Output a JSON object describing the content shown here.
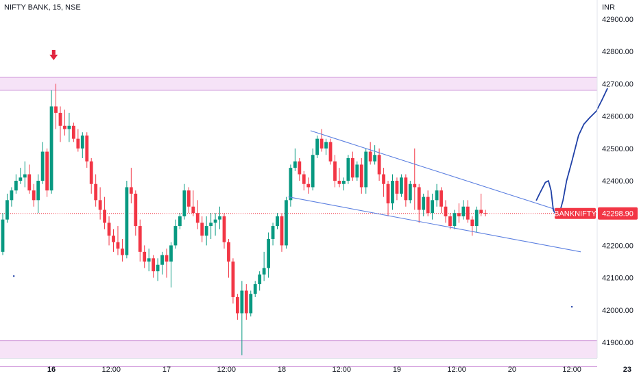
{
  "chart_data": {
    "type": "candlestick",
    "title": "NIFTY BANK, 15, NSE",
    "currency": "INR",
    "y_ticks": [
      41900,
      42000,
      42100,
      42200,
      42300,
      42400,
      42500,
      42600,
      42700,
      42800,
      42900
    ],
    "y_tick_labels": [
      "41900.00",
      "42000.00",
      "42100.00",
      "42200.00",
      "42300.00",
      "42400.00",
      "42500.00",
      "42600.00",
      "42700.00",
      "42800.00",
      "42900.00"
    ],
    "ylim": [
      41830,
      42940
    ],
    "x_tick_labels": [
      {
        "label": "16",
        "x": 11,
        "bold": true
      },
      {
        "label": "12:00",
        "x": 24.5,
        "bold": false
      },
      {
        "label": "17",
        "x": 37,
        "bold": false
      },
      {
        "label": "12:00",
        "x": 50.5,
        "bold": false
      },
      {
        "label": "18",
        "x": 63,
        "bold": false
      },
      {
        "label": "12:00",
        "x": 76.5,
        "bold": false
      },
      {
        "label": "19",
        "x": 89,
        "bold": false
      },
      {
        "label": "12:00",
        "x": 102.5,
        "bold": false
      },
      {
        "label": "20",
        "x": 115,
        "bold": false
      },
      {
        "label": "12:00",
        "x": 128.5,
        "bold": false
      },
      {
        "label": "23",
        "x": 141,
        "bold": true
      }
    ],
    "xlim": [
      0,
      145
    ],
    "last_price": {
      "symbol": "BANKNIFTY",
      "value": 42298.9,
      "label": "42298.90"
    },
    "zones": [
      {
        "from": 42680,
        "to": 42720
      },
      {
        "from": 41825,
        "to": 41905
      }
    ],
    "colors": {
      "up": "#089981",
      "down": "#f23645",
      "zone": "#f6e3f7",
      "zone_border": "#ce93d8",
      "trend": "#5b7fe0",
      "drawing": "#1e3fa6",
      "arrow": "#e1253f",
      "price_label": "#f23645"
    },
    "trend_lines": [
      {
        "from": [
          69.5,
          42555
        ],
        "to": [
          128.5,
          42295
        ]
      },
      {
        "from": [
          64.5,
          42350
        ],
        "to": [
          130.5,
          42180
        ]
      }
    ],
    "freehand_path": [
      [
        120.5,
        42340
      ],
      [
        121.2,
        42360
      ],
      [
        122.5,
        42395
      ],
      [
        123.2,
        42400
      ],
      [
        123.8,
        42370
      ],
      [
        124.3,
        42310
      ],
      [
        125,
        42290
      ],
      [
        125.8,
        42305
      ],
      [
        126.5,
        42340
      ],
      [
        127.3,
        42400
      ],
      [
        128.5,
        42460
      ],
      [
        130,
        42540
      ],
      [
        131.2,
        42575
      ],
      [
        132.5,
        42595
      ],
      [
        134,
        42615
      ],
      [
        135.3,
        42650
      ],
      [
        136.5,
        42685
      ]
    ],
    "arrow_marker": {
      "x": 11.5,
      "price": 42790
    },
    "scatter_markers": [
      [
        2.5,
        42105
      ],
      [
        128.5,
        42010
      ]
    ],
    "candles": [
      [
        0,
        42180,
        42300,
        42170,
        42280
      ],
      [
        1,
        42280,
        42360,
        42270,
        42340
      ],
      [
        2,
        42340,
        42380,
        42320,
        42370
      ],
      [
        3,
        42370,
        42420,
        42360,
        42400
      ],
      [
        4,
        42400,
        42440,
        42390,
        42410
      ],
      [
        5,
        42410,
        42460,
        42380,
        42420
      ],
      [
        6,
        42420,
        42450,
        42360,
        42370
      ],
      [
        7,
        42370,
        42390,
        42320,
        42340
      ],
      [
        8,
        42340,
        42420,
        42300,
        42400
      ],
      [
        9,
        42400,
        42520,
        42390,
        42490
      ],
      [
        10,
        42490,
        42500,
        42350,
        42370
      ],
      [
        11,
        42370,
        42680,
        42360,
        42630
      ],
      [
        12,
        42630,
        42700,
        42560,
        42610
      ],
      [
        13,
        42610,
        42630,
        42520,
        42570
      ],
      [
        14,
        42570,
        42620,
        42540,
        42560
      ],
      [
        15,
        42560,
        42610,
        42520,
        42570
      ],
      [
        16,
        42570,
        42580,
        42520,
        42530
      ],
      [
        17,
        42530,
        42560,
        42490,
        42500
      ],
      [
        18,
        42500,
        42550,
        42470,
        42540
      ],
      [
        19,
        42540,
        42550,
        42440,
        42460
      ],
      [
        20,
        42460,
        42470,
        42360,
        42390
      ],
      [
        21,
        42390,
        42420,
        42320,
        42340
      ],
      [
        22,
        42340,
        42380,
        42280,
        42310
      ],
      [
        23,
        42310,
        42350,
        42250,
        42270
      ],
      [
        24,
        42270,
        42290,
        42200,
        42230
      ],
      [
        25,
        42230,
        42250,
        42180,
        42210
      ],
      [
        26,
        42210,
        42260,
        42170,
        42190
      ],
      [
        27,
        42190,
        42220,
        42150,
        42170
      ],
      [
        28,
        42170,
        42400,
        42160,
        42380
      ],
      [
        29,
        42380,
        42440,
        42330,
        42360
      ],
      [
        30,
        42360,
        42370,
        42230,
        42260
      ],
      [
        31,
        42260,
        42280,
        42150,
        42180
      ],
      [
        32,
        42180,
        42200,
        42130,
        42150
      ],
      [
        33,
        42150,
        42190,
        42120,
        42160
      ],
      [
        34,
        42160,
        42170,
        42100,
        42120
      ],
      [
        35,
        42120,
        42160,
        42090,
        42140
      ],
      [
        36,
        42140,
        42180,
        42110,
        42170
      ],
      [
        37,
        42170,
        42190,
        42100,
        42150
      ],
      [
        38,
        42150,
        42210,
        42070,
        42200
      ],
      [
        39,
        42200,
        42280,
        42190,
        42260
      ],
      [
        40,
        42260,
        42300,
        42250,
        42290
      ],
      [
        41,
        42290,
        42390,
        42280,
        42370
      ],
      [
        42,
        42370,
        42380,
        42300,
        42320
      ],
      [
        43,
        42320,
        42370,
        42290,
        42300
      ],
      [
        44,
        42300,
        42340,
        42250,
        42270
      ],
      [
        45,
        42270,
        42290,
        42210,
        42230
      ],
      [
        46,
        42230,
        42290,
        42200,
        42260
      ],
      [
        47,
        42260,
        42300,
        42220,
        42270
      ],
      [
        48,
        42270,
        42300,
        42230,
        42280
      ],
      [
        49,
        42280,
        42320,
        42250,
        42290
      ],
      [
        50,
        42290,
        42300,
        42190,
        42210
      ],
      [
        51,
        42210,
        42220,
        42100,
        42150
      ],
      [
        52,
        42150,
        42160,
        42020,
        42040
      ],
      [
        53,
        42040,
        42050,
        41970,
        41990
      ],
      [
        54,
        41990,
        42090,
        41860,
        42060
      ],
      [
        55,
        42060,
        42080,
        41970,
        41990
      ],
      [
        56,
        41990,
        42060,
        41980,
        42050
      ],
      [
        57,
        42050,
        42090,
        42040,
        42080
      ],
      [
        58,
        42080,
        42120,
        42060,
        42110
      ],
      [
        59,
        42110,
        42180,
        42090,
        42130
      ],
      [
        60,
        42130,
        42240,
        42100,
        42220
      ],
      [
        61,
        42220,
        42270,
        42200,
        42260
      ],
      [
        62,
        42260,
        42300,
        42250,
        42290
      ],
      [
        63,
        42290,
        42300,
        42180,
        42200
      ],
      [
        64,
        42200,
        42350,
        42190,
        42340
      ],
      [
        65,
        42340,
        42450,
        42320,
        42440
      ],
      [
        66,
        42440,
        42500,
        42430,
        42460
      ],
      [
        67,
        42460,
        42470,
        42400,
        42420
      ],
      [
        68,
        42420,
        42430,
        42370,
        42390
      ],
      [
        69,
        42390,
        42410,
        42360,
        42380
      ],
      [
        70,
        42380,
        42500,
        42370,
        42480
      ],
      [
        71,
        42480,
        42540,
        42470,
        42530
      ],
      [
        72,
        42530,
        42560,
        42490,
        42500
      ],
      [
        73,
        42500,
        42530,
        42480,
        42520
      ],
      [
        74,
        42520,
        42530,
        42450,
        42460
      ],
      [
        75,
        42460,
        42480,
        42380,
        42400
      ],
      [
        76,
        42400,
        42440,
        42380,
        42390
      ],
      [
        77,
        42390,
        42410,
        42370,
        42400
      ],
      [
        78,
        42400,
        42480,
        42390,
        42470
      ],
      [
        79,
        42470,
        42490,
        42400,
        42410
      ],
      [
        80,
        42410,
        42460,
        42400,
        42450
      ],
      [
        81,
        42450,
        42470,
        42360,
        42380
      ],
      [
        82,
        42380,
        42500,
        42360,
        42490
      ],
      [
        83,
        42490,
        42520,
        42450,
        42460
      ],
      [
        84,
        42460,
        42510,
        42450,
        42480
      ],
      [
        85,
        42480,
        42500,
        42400,
        42420
      ],
      [
        86,
        42420,
        42440,
        42350,
        42390
      ],
      [
        87,
        42390,
        42400,
        42290,
        42330
      ],
      [
        88,
        42330,
        42420,
        42310,
        42400
      ],
      [
        89,
        42400,
        42410,
        42340,
        42360
      ],
      [
        90,
        42360,
        42420,
        42350,
        42410
      ],
      [
        91,
        42410,
        42420,
        42320,
        42340
      ],
      [
        92,
        42340,
        42400,
        42330,
        42390
      ],
      [
        93,
        42390,
        42500,
        42310,
        42380
      ],
      [
        94,
        42380,
        42390,
        42270,
        42310
      ],
      [
        95,
        42310,
        42360,
        42290,
        42350
      ],
      [
        96,
        42350,
        42370,
        42290,
        42300
      ],
      [
        97,
        42300,
        42360,
        42280,
        42340
      ],
      [
        98,
        42340,
        42390,
        42320,
        42370
      ],
      [
        99,
        42370,
        42380,
        42300,
        42320
      ],
      [
        100,
        42320,
        42340,
        42270,
        42290
      ],
      [
        101,
        42290,
        42300,
        42250,
        42260
      ],
      [
        102,
        42260,
        42310,
        42250,
        42300
      ],
      [
        103,
        42300,
        42330,
        42270,
        42290
      ],
      [
        104,
        42290,
        42340,
        42280,
        42320
      ],
      [
        105,
        42320,
        42340,
        42270,
        42280
      ],
      [
        106,
        42280,
        42290,
        42230,
        42260
      ],
      [
        107,
        42260,
        42320,
        42240,
        42310
      ],
      [
        108,
        42310,
        42360,
        42290,
        42300
      ],
      [
        109,
        42300,
        42310,
        42290,
        42299
      ]
    ]
  }
}
